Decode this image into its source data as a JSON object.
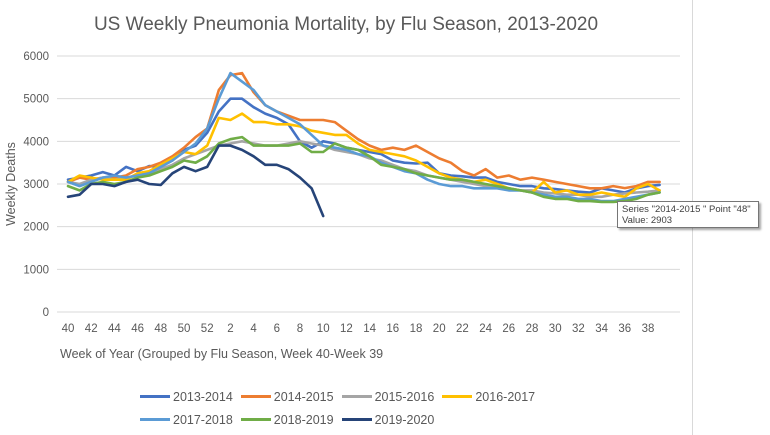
{
  "chart_data": {
    "type": "line",
    "title": "US Weekly Pneumonia Mortality, by Flu Season, 2013-2020",
    "xlabel": "Week of Year (Grouped by Flu Season, Week 40-Week 39",
    "ylabel": "Weekly Deaths",
    "ylim": [
      0,
      6000
    ],
    "yticks": [
      "0",
      "1000",
      "2000",
      "3000",
      "4000",
      "5000",
      "6000"
    ],
    "ytick_values": [
      0,
      1000,
      2000,
      3000,
      4000,
      5000,
      6000
    ],
    "grid": true,
    "legend_position": "bottom",
    "x": [
      40,
      41,
      42,
      43,
      44,
      45,
      46,
      47,
      48,
      49,
      50,
      51,
      52,
      1,
      2,
      3,
      4,
      5,
      6,
      7,
      8,
      9,
      10,
      11,
      12,
      13,
      14,
      15,
      16,
      17,
      18,
      19,
      20,
      21,
      22,
      23,
      24,
      25,
      26,
      27,
      28,
      29,
      30,
      31,
      32,
      33,
      34,
      35,
      36,
      37,
      38,
      39
    ],
    "xticks": [
      "40",
      "42",
      "44",
      "46",
      "48",
      "50",
      "52",
      "2",
      "4",
      "6",
      "8",
      "10",
      "12",
      "14",
      "16",
      "18",
      "20",
      "22",
      "24",
      "26",
      "28",
      "30",
      "32",
      "34",
      "36",
      "38"
    ],
    "series": [
      {
        "name": "2013-2014",
        "color": "#4472c4",
        "values": [
          3100,
          3150,
          3200,
          3280,
          3200,
          3400,
          3300,
          3420,
          3400,
          3550,
          3800,
          3900,
          4200,
          4700,
          5000,
          5000,
          4800,
          4650,
          4550,
          4400,
          4000,
          3850,
          4000,
          3950,
          3850,
          3800,
          3750,
          3700,
          3550,
          3500,
          3480,
          3500,
          3250,
          3200,
          3180,
          3150,
          3150,
          3050,
          3000,
          2950,
          2950,
          2900,
          2880,
          2850,
          2820,
          2800,
          2900,
          2850,
          2800,
          2900,
          2950,
          2980
        ]
      },
      {
        "name": "2014-2015",
        "color": "#ed7d31",
        "values": [
          3050,
          3150,
          3100,
          3150,
          3150,
          3200,
          3350,
          3400,
          3500,
          3650,
          3850,
          4100,
          4300,
          5200,
          5550,
          5600,
          5150,
          4850,
          4700,
          4600,
          4500,
          4500,
          4500,
          4450,
          4250,
          4050,
          3900,
          3800,
          3850,
          3800,
          3900,
          3750,
          3600,
          3500,
          3300,
          3200,
          3350,
          3150,
          3200,
          3100,
          3150,
          3100,
          3050,
          3000,
          2950,
          2900,
          2900,
          2950,
          2903,
          2950,
          3050,
          3050
        ]
      },
      {
        "name": "2015-2016",
        "color": "#a5a5a5",
        "values": [
          3050,
          3000,
          3100,
          3150,
          3100,
          3150,
          3200,
          3250,
          3350,
          3450,
          3600,
          3700,
          3800,
          3900,
          3950,
          4000,
          3950,
          3900,
          3900,
          3950,
          4000,
          3950,
          3900,
          3800,
          3750,
          3700,
          3600,
          3550,
          3450,
          3350,
          3300,
          3200,
          3150,
          3100,
          3050,
          3000,
          2950,
          2950,
          2900,
          2850,
          2850,
          2800,
          2780,
          2750,
          2750,
          2700,
          2700,
          2750,
          2780,
          2800,
          2820,
          2850
        ]
      },
      {
        "name": "2016-2017",
        "color": "#ffc000",
        "values": [
          3050,
          3200,
          3150,
          3100,
          3100,
          3100,
          3250,
          3300,
          3450,
          3600,
          3750,
          3700,
          3900,
          4550,
          4500,
          4650,
          4450,
          4450,
          4400,
          4400,
          4350,
          4250,
          4200,
          4150,
          4150,
          3950,
          3800,
          3750,
          3700,
          3650,
          3550,
          3400,
          3250,
          3150,
          3100,
          3050,
          3100,
          3000,
          2900,
          2850,
          2800,
          3050,
          2800,
          2850,
          2750,
          2750,
          2800,
          2750,
          2700,
          2900,
          3000,
          2850
        ]
      },
      {
        "name": "2017-2018",
        "color": "#5b9bd5",
        "values": [
          3050,
          2950,
          3050,
          3150,
          3200,
          3150,
          3200,
          3250,
          3400,
          3550,
          3750,
          3950,
          4300,
          5000,
          5600,
          5400,
          5200,
          4850,
          4700,
          4550,
          4400,
          4150,
          3900,
          3850,
          3800,
          3700,
          3650,
          3500,
          3400,
          3300,
          3250,
          3100,
          3000,
          2950,
          2950,
          2900,
          2900,
          2900,
          2850,
          2850,
          2800,
          2750,
          2700,
          2700,
          2650,
          2650,
          2600,
          2600,
          2650,
          2700,
          2750,
          2800
        ]
      },
      {
        "name": "2018-2019",
        "color": "#70ad47",
        "values": [
          2950,
          2850,
          3000,
          3050,
          3000,
          3050,
          3150,
          3200,
          3300,
          3400,
          3550,
          3500,
          3650,
          3950,
          4050,
          4100,
          3900,
          3900,
          3900,
          3900,
          3950,
          3750,
          3750,
          3950,
          3850,
          3800,
          3650,
          3450,
          3400,
          3350,
          3250,
          3200,
          3150,
          3100,
          3100,
          3050,
          3000,
          2950,
          2900,
          2850,
          2800,
          2700,
          2650,
          2650,
          2600,
          2600,
          2580,
          2580,
          2600,
          2650,
          2750,
          2800
        ]
      },
      {
        "name": "2019-2020",
        "color": "#264478",
        "values": [
          2700,
          2750,
          3000,
          3000,
          2950,
          3050,
          3100,
          3000,
          2980,
          3250,
          3400,
          3300,
          3400,
          3900,
          3900,
          3800,
          3650,
          3450,
          3450,
          3350,
          3150,
          2900,
          2250,
          null,
          null,
          null,
          null,
          null,
          null,
          null,
          null,
          null,
          null,
          null,
          null,
          null,
          null,
          null,
          null,
          null,
          null,
          null,
          null,
          null,
          null,
          null,
          null,
          null,
          null,
          null,
          null,
          null
        ]
      }
    ]
  },
  "tooltip": {
    "line1": "Series \"2014-2015 \" Point \"48\"",
    "line2": "Value: 2903"
  }
}
